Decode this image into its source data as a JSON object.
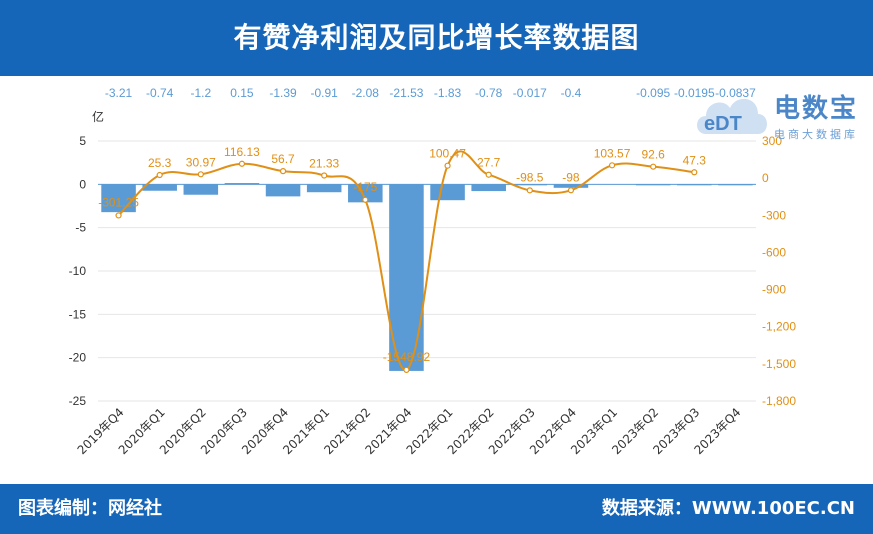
{
  "header": {
    "title": "有赞净利润及同比增长率数据图"
  },
  "footer": {
    "left": "图表编制：网经社",
    "right": "数据来源：WWW.100EC.CN"
  },
  "logo": {
    "brand": "电数宝",
    "tagline": "电商大数据库",
    "mark_text": "eDT"
  },
  "colors": {
    "bar": "#5b9bd5",
    "line": "#e09016",
    "bar_label": "#5b9bd5",
    "line_label": "#e09016",
    "header_bg": "#1565b8"
  },
  "chart_data": {
    "type": "bar",
    "categories": [
      "2019年Q4",
      "2020年Q1",
      "2020年Q2",
      "2020年Q3",
      "2020年Q4",
      "2021年Q1",
      "2021年Q2",
      "2021年Q4",
      "2022年Q1",
      "2022年Q2",
      "2022年Q3",
      "2022年Q4",
      "2023年Q1",
      "2023年Q2",
      "2023年Q3",
      "2023年Q4"
    ],
    "series": [
      {
        "type": "bar",
        "axis": "left",
        "values": [
          -3.21,
          -0.74,
          -1.2,
          0.15,
          -1.39,
          -0.91,
          -2.08,
          -21.53,
          -1.83,
          -0.78,
          -0.017,
          -0.4,
          null,
          -0.095,
          -0.0195,
          -0.0837
        ],
        "labels": [
          "-3.21",
          "-0.74",
          "-1.2",
          "0.15",
          "-1.39",
          "-0.91",
          "-2.08",
          "-21.53",
          "-1.83",
          "-0.78",
          "-0.017",
          "-0.4",
          "",
          "-0.095",
          "-0.0195",
          "-0.0837"
        ]
      },
      {
        "type": "line",
        "axis": "right",
        "values": [
          -301.25,
          25.3,
          30.97,
          116.13,
          56.7,
          21.33,
          -175,
          -1548.92,
          100.47,
          27.7,
          -98.5,
          -98,
          103.57,
          92.6,
          47.3,
          null
        ],
        "labels": [
          "-301.25",
          "25.3",
          "30.97",
          "116.13",
          "56.7",
          "21.33",
          "-175",
          "-1548.92",
          "100.47",
          "27.7",
          "-98.5",
          "-98",
          "103.57",
          "92.6",
          "47.3",
          ""
        ]
      }
    ],
    "y_left": {
      "unit": "亿",
      "ticks": [
        "5",
        "0",
        "-5",
        "-10",
        "-15",
        "-20",
        "-25"
      ],
      "ylim": [
        -25,
        5
      ]
    },
    "y_right": {
      "unit": "%",
      "ticks": [
        "300",
        "0",
        "-300",
        "-600",
        "-900",
        "-1,200",
        "-1,500",
        "-1,800"
      ],
      "ylim": [
        -1800,
        300
      ]
    },
    "grid": true
  }
}
